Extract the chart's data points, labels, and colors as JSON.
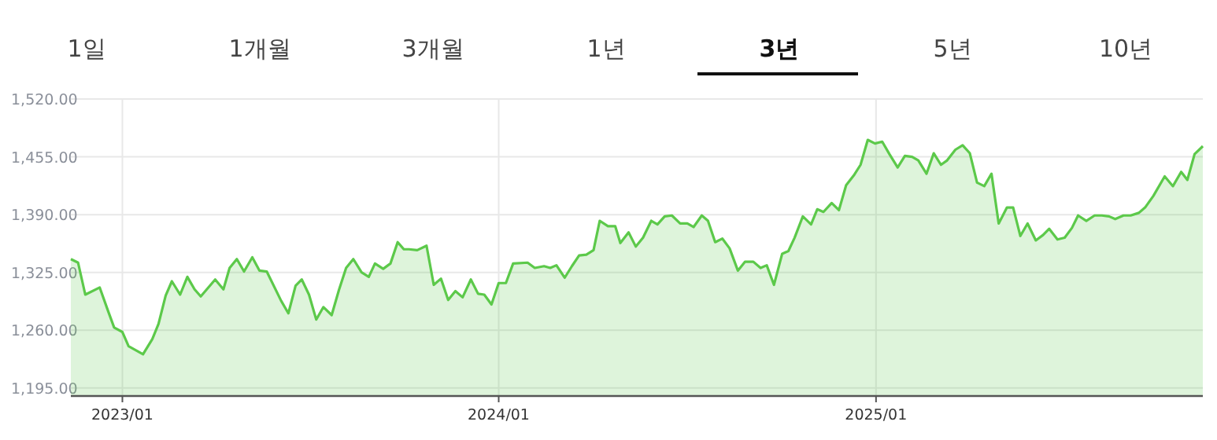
{
  "chart_data": {
    "type": "area",
    "annotations": [
      "1일",
      "1개월",
      "3개월",
      "1년",
      "3년",
      "5년",
      "10년"
    ],
    "x": [
      "2022-11-12",
      "2022-11-19",
      "2022-11-26",
      "2022-12-10",
      "2022-12-18",
      "2022-12-24",
      "2023-01-01",
      "2023-01-07",
      "2023-01-21",
      "2023-01-30",
      "2023-02-05",
      "2023-02-12",
      "2023-02-18",
      "2023-02-26",
      "2023-03-05",
      "2023-03-12",
      "2023-03-18",
      "2023-04-01",
      "2023-04-09",
      "2023-04-15",
      "2023-04-22",
      "2023-04-29",
      "2023-05-07",
      "2023-05-14",
      "2023-05-21",
      "2023-06-04",
      "2023-06-11",
      "2023-06-18",
      "2023-06-24",
      "2023-07-01",
      "2023-07-08",
      "2023-07-15",
      "2023-07-23",
      "2023-07-30",
      "2023-08-06",
      "2023-08-13",
      "2023-08-21",
      "2023-08-28",
      "2023-09-03",
      "2023-09-11",
      "2023-09-18",
      "2023-09-25",
      "2023-10-01",
      "2023-10-06",
      "2023-10-14",
      "2023-10-23",
      "2023-10-30",
      "2023-11-06",
      "2023-11-13",
      "2023-11-20",
      "2023-11-27",
      "2023-12-05",
      "2023-12-12",
      "2023-12-18",
      "2023-12-25",
      "2024-01-01",
      "2024-01-08",
      "2024-01-15",
      "2024-01-29",
      "2024-02-05",
      "2024-02-14",
      "2024-02-20",
      "2024-02-26",
      "2024-03-05",
      "2024-03-12",
      "2024-03-19",
      "2024-03-26",
      "2024-04-02",
      "2024-04-08",
      "2024-04-16",
      "2024-04-23",
      "2024-04-28",
      "2024-05-06",
      "2024-05-13",
      "2024-05-20",
      "2024-05-28",
      "2024-06-03",
      "2024-06-10",
      "2024-06-17",
      "2024-06-25",
      "2024-07-02",
      "2024-07-08",
      "2024-07-16",
      "2024-07-22",
      "2024-07-29",
      "2024-08-05",
      "2024-08-12",
      "2024-08-20",
      "2024-08-27",
      "2024-09-04",
      "2024-09-11",
      "2024-09-17",
      "2024-09-24",
      "2024-10-02",
      "2024-10-08",
      "2024-10-14",
      "2024-10-22",
      "2024-10-30",
      "2024-11-05",
      "2024-11-11",
      "2024-11-19",
      "2024-11-26",
      "2024-12-03",
      "2024-12-11",
      "2024-12-17",
      "2024-12-24",
      "2024-12-31",
      "2025-01-07",
      "2025-01-14",
      "2025-01-22",
      "2025-01-29",
      "2025-02-05",
      "2025-02-11",
      "2025-02-19",
      "2025-02-26",
      "2025-03-05",
      "2025-03-11",
      "2025-03-19",
      "2025-03-26",
      "2025-04-02",
      "2025-04-09",
      "2025-04-16",
      "2025-04-23",
      "2025-04-30",
      "2025-05-08",
      "2025-05-14",
      "2025-05-21",
      "2025-05-28",
      "2025-06-05",
      "2025-06-12",
      "2025-06-18",
      "2025-06-26",
      "2025-07-03",
      "2025-07-10",
      "2025-07-16",
      "2025-07-24",
      "2025-08-01",
      "2025-08-08",
      "2025-08-15",
      "2025-08-21",
      "2025-08-29",
      "2025-09-05",
      "2025-09-13",
      "2025-09-19",
      "2025-09-27",
      "2025-10-08",
      "2025-10-16",
      "2025-10-24",
      "2025-10-30",
      "2025-11-06",
      "2025-11-14"
    ],
    "values": [
      1340,
      1336,
      1300,
      1308,
      1282,
      1263,
      1258,
      1242,
      1233,
      1250,
      1267,
      1299,
      1315,
      1300,
      1320,
      1306,
      1298,
      1317,
      1306,
      1330,
      1340,
      1326,
      1342,
      1327,
      1326,
      1293,
      1279,
      1310,
      1317,
      1300,
      1272,
      1286,
      1277,
      1305,
      1330,
      1340,
      1325,
      1320,
      1335,
      1329,
      1335,
      1359,
      1351,
      1351,
      1350,
      1355,
      1311,
      1318,
      1294,
      1304,
      1297,
      1317,
      1301,
      1300,
      1289,
      1313,
      1313,
      1335,
      1336,
      1330,
      1332,
      1330,
      1333,
      1319,
      1332,
      1344,
      1345,
      1350,
      1383,
      1377,
      1377,
      1358,
      1370,
      1354,
      1364,
      1383,
      1379,
      1388,
      1389,
      1380,
      1380,
      1376,
      1389,
      1383,
      1359,
      1363,
      1352,
      1327,
      1337,
      1337,
      1330,
      1333,
      1311,
      1346,
      1349,
      1364,
      1388,
      1379,
      1396,
      1393,
      1403,
      1395,
      1423,
      1435,
      1446,
      1474,
      1470,
      1472,
      1458,
      1443,
      1456,
      1455,
      1451,
      1436,
      1459,
      1446,
      1451,
      1463,
      1468,
      1459,
      1426,
      1422,
      1436,
      1380,
      1398,
      1398,
      1366,
      1380,
      1361,
      1367,
      1374,
      1362,
      1364,
      1375,
      1389,
      1383,
      1389,
      1389,
      1388,
      1385,
      1389,
      1389,
      1392,
      1398,
      1411,
      1433,
      1422,
      1438,
      1429,
      1458,
      1467
    ],
    "color": "#5cc94a",
    "xlim": [
      "2022-11-12",
      "2025-11-14"
    ],
    "ylim": [
      1186,
      1520
    ],
    "xticks": [
      {
        "value": "2023-01-01",
        "label": "2023/01"
      },
      {
        "value": "2024-01-01",
        "label": "2024/01"
      },
      {
        "value": "2025-01-01",
        "label": "2025/01"
      }
    ],
    "yticks": [
      {
        "value": 1195,
        "label": "1,195.00"
      },
      {
        "value": 1260,
        "label": "1,260.00"
      },
      {
        "value": 1325,
        "label": "1,325.00"
      },
      {
        "value": 1390,
        "label": "1,390.00"
      },
      {
        "value": 1455,
        "label": "1,455.00"
      },
      {
        "value": 1520,
        "label": "1,520.00"
      }
    ],
    "grid": true
  }
}
